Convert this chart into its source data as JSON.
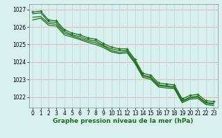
{
  "title": "Graphe pression niveau de la mer (hPa)",
  "bg_color": "#d8f0ee",
  "grid_color_h": "#f0b0b0",
  "grid_color_v": "#c0e0dc",
  "line_color": "#1a6e1a",
  "marker_color": "#1a6e1a",
  "xlim": [
    -0.5,
    23.5
  ],
  "ylim": [
    1021.4,
    1027.3
  ],
  "yticks": [
    1022,
    1023,
    1024,
    1025,
    1026,
    1027
  ],
  "xticks": [
    0,
    1,
    2,
    3,
    4,
    5,
    6,
    7,
    8,
    9,
    10,
    11,
    12,
    13,
    14,
    15,
    16,
    17,
    18,
    19,
    20,
    21,
    22,
    23
  ],
  "series1": [
    1026.75,
    1026.8,
    1026.3,
    1026.25,
    1025.75,
    1025.55,
    1025.45,
    1025.28,
    1025.2,
    1024.95,
    1024.75,
    1024.65,
    1024.65,
    1024.05,
    1023.25,
    1023.15,
    1022.7,
    1022.65,
    1022.6,
    1021.8,
    1022.0,
    1022.05,
    1021.7,
    1021.65
  ],
  "series2": [
    1026.55,
    1026.6,
    1026.2,
    1026.15,
    1025.65,
    1025.5,
    1025.35,
    1025.2,
    1025.1,
    1024.9,
    1024.65,
    1024.55,
    1024.6,
    1024.0,
    1023.2,
    1023.1,
    1022.65,
    1022.6,
    1022.55,
    1021.75,
    1021.95,
    1022.0,
    1021.65,
    1021.6
  ],
  "series3": [
    1026.4,
    1026.5,
    1026.1,
    1026.05,
    1025.55,
    1025.42,
    1025.28,
    1025.12,
    1025.0,
    1024.82,
    1024.58,
    1024.48,
    1024.52,
    1023.92,
    1023.12,
    1023.02,
    1022.58,
    1022.52,
    1022.48,
    1021.68,
    1021.88,
    1021.92,
    1021.58,
    1021.52
  ],
  "series_main": [
    1026.85,
    1026.9,
    1026.4,
    1026.35,
    1025.85,
    1025.65,
    1025.55,
    1025.38,
    1025.3,
    1025.05,
    1024.85,
    1024.75,
    1024.75,
    1024.15,
    1023.35,
    1023.25,
    1022.8,
    1022.75,
    1022.7,
    1021.9,
    1022.1,
    1022.15,
    1021.8,
    1021.75
  ],
  "tick_fontsize": 5.5,
  "xlabel_fontsize": 6.5
}
